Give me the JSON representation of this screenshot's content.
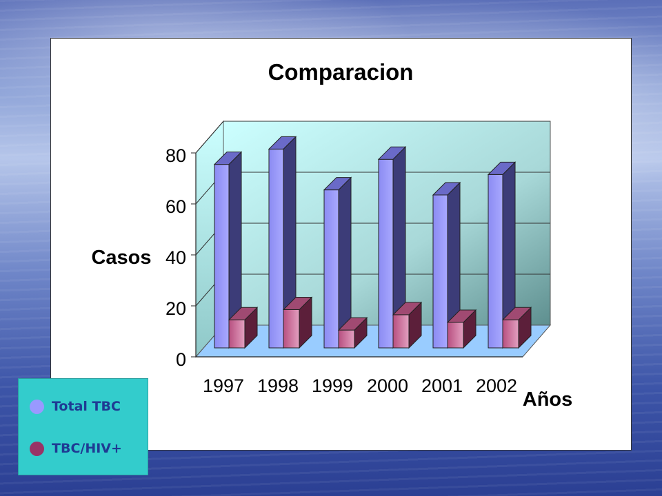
{
  "chart_data": {
    "type": "bar",
    "title": "Comparacion",
    "xlabel": "Años",
    "ylabel": "Casos",
    "categories": [
      "1997",
      "1998",
      "1999",
      "2000",
      "2001",
      "2002"
    ],
    "yticks": [
      "0",
      "20",
      "40",
      "60",
      "80"
    ],
    "ylim": [
      0,
      80
    ],
    "grid": true,
    "series": [
      {
        "name": "Total TBC",
        "values": [
          72,
          78,
          62,
          74,
          60,
          68
        ],
        "color": "#9999ff"
      },
      {
        "name": "TBC/HIV+",
        "values": [
          11,
          15,
          7,
          13,
          10,
          11
        ],
        "color": "#993366"
      }
    ],
    "legend_position": "bottom-left"
  },
  "legend": {
    "items": [
      {
        "label": "Total TBC",
        "color": "#9999ff"
      },
      {
        "label": "TBC/HIV+",
        "color": "#993366"
      }
    ]
  }
}
